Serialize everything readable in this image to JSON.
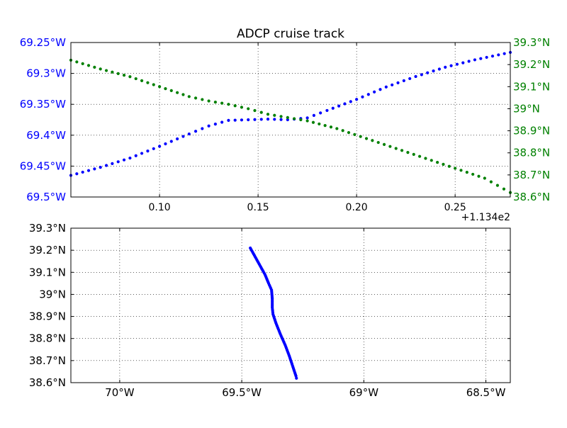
{
  "chart_data": [
    {
      "type": "scatter",
      "title": "ADCP cruise track",
      "x_offset_label": "+1.134e2",
      "xlim": [
        0.055,
        0.278
      ],
      "x_ticks": [
        0.1,
        0.15,
        0.2,
        0.25
      ],
      "x_tick_labels": [
        "0.10",
        "0.15",
        "0.20",
        "0.25"
      ],
      "grid": true,
      "left_axis": {
        "ylim": [
          69.25,
          69.5
        ],
        "inverted": true,
        "ticks": [
          69.25,
          69.3,
          69.35,
          69.4,
          69.45,
          69.5
        ],
        "tick_labels": [
          "69.25°W",
          "69.3°W",
          "69.35°W",
          "69.4°W",
          "69.45°W",
          "69.5°W"
        ]
      },
      "right_axis": {
        "ylim": [
          38.6,
          39.3
        ],
        "ticks": [
          38.6,
          38.7,
          38.8,
          38.9,
          39.0,
          39.1,
          39.2,
          39.3
        ],
        "tick_labels": [
          "38.6°N",
          "38.7°N",
          "38.8°N",
          "38.9°N",
          "39°N",
          "39.1°N",
          "39.2°N",
          "39.3°N"
        ]
      },
      "series": [
        {
          "axis": "left",
          "color": "#0000ff",
          "points": [
            [
              0.055,
              69.465
            ],
            [
              0.07,
              69.452
            ],
            [
              0.085,
              69.437
            ],
            [
              0.1,
              69.418
            ],
            [
              0.115,
              69.398
            ],
            [
              0.125,
              69.385
            ],
            [
              0.135,
              69.376
            ],
            [
              0.145,
              69.375
            ],
            [
              0.155,
              69.374
            ],
            [
              0.165,
              69.375
            ],
            [
              0.175,
              69.372
            ],
            [
              0.185,
              69.36
            ],
            [
              0.2,
              69.342
            ],
            [
              0.215,
              69.322
            ],
            [
              0.23,
              69.305
            ],
            [
              0.245,
              69.29
            ],
            [
              0.26,
              69.278
            ],
            [
              0.278,
              69.266
            ]
          ]
        },
        {
          "axis": "right",
          "color": "#008000",
          "points": [
            [
              0.055,
              39.22
            ],
            [
              0.07,
              39.18
            ],
            [
              0.085,
              39.145
            ],
            [
              0.1,
              39.1
            ],
            [
              0.115,
              39.055
            ],
            [
              0.125,
              39.035
            ],
            [
              0.135,
              39.02
            ],
            [
              0.145,
              39.0
            ],
            [
              0.155,
              38.975
            ],
            [
              0.165,
              38.96
            ],
            [
              0.175,
              38.945
            ],
            [
              0.19,
              38.91
            ],
            [
              0.205,
              38.865
            ],
            [
              0.22,
              38.82
            ],
            [
              0.235,
              38.775
            ],
            [
              0.25,
              38.73
            ],
            [
              0.265,
              38.685
            ],
            [
              0.278,
              38.62
            ]
          ]
        }
      ]
    },
    {
      "type": "scatter",
      "xlim": [
        70.2,
        68.4
      ],
      "ylim": [
        38.6,
        39.3
      ],
      "x_ticks": [
        70.0,
        69.5,
        69.0,
        68.5
      ],
      "x_tick_labels": [
        "70°W",
        "69.5°W",
        "69°W",
        "68.5°W"
      ],
      "y_ticks": [
        38.6,
        38.7,
        38.8,
        38.9,
        39.0,
        39.1,
        39.2,
        39.3
      ],
      "y_tick_labels": [
        "38.6°N",
        "38.7°N",
        "38.8°N",
        "38.9°N",
        "39°N",
        "39.1°N",
        "39.2°N",
        "39.3°N"
      ],
      "grid": true,
      "series": [
        {
          "color": "#0000ff",
          "points": [
            [
              69.465,
              39.21
            ],
            [
              69.445,
              39.17
            ],
            [
              69.425,
              39.13
            ],
            [
              69.405,
              39.09
            ],
            [
              69.39,
              39.05
            ],
            [
              69.378,
              39.02
            ],
            [
              69.375,
              38.98
            ],
            [
              69.375,
              38.94
            ],
            [
              69.372,
              38.91
            ],
            [
              69.36,
              38.87
            ],
            [
              69.342,
              38.82
            ],
            [
              69.322,
              38.77
            ],
            [
              69.305,
              38.72
            ],
            [
              69.29,
              38.67
            ],
            [
              69.278,
              38.63
            ],
            [
              69.276,
              38.62
            ]
          ]
        }
      ]
    }
  ]
}
